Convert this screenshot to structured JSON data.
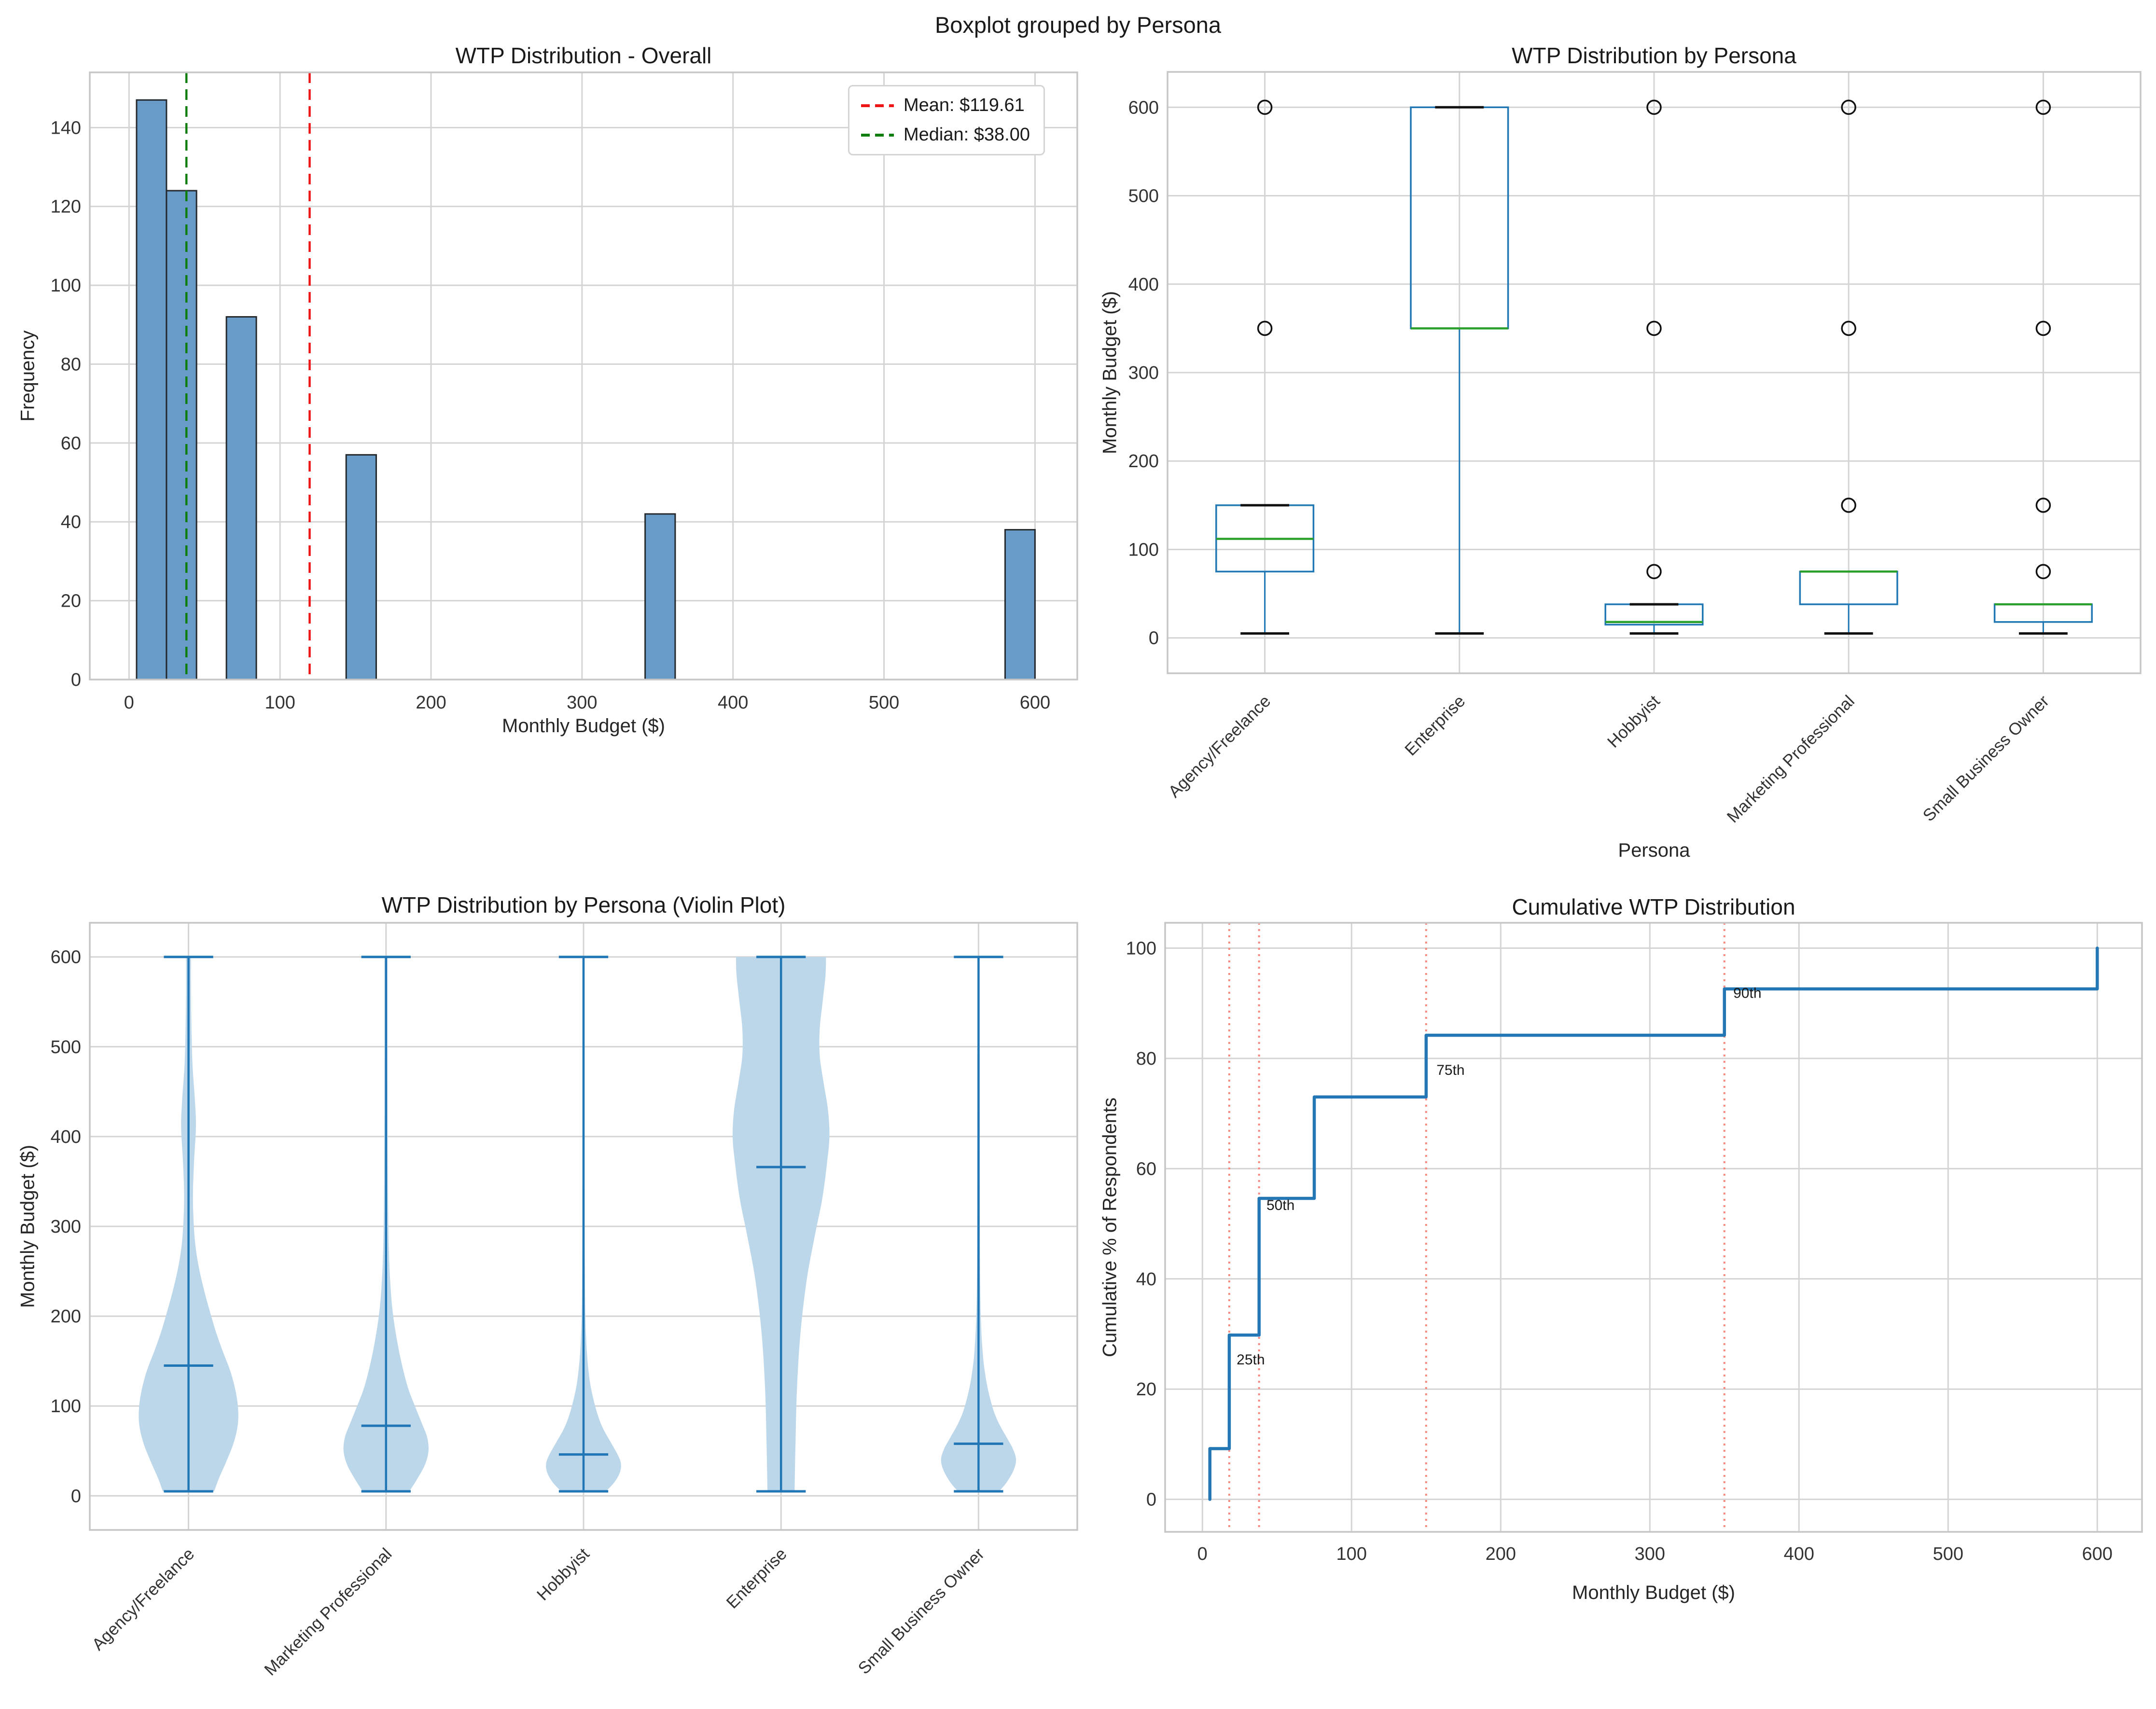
{
  "figure": {
    "suptitle": "Boxplot grouped by Persona"
  },
  "colors": {
    "hist_bar_fill": "#699bc8",
    "hist_bar_edge": "#24292e",
    "mean_red": "#ed1515",
    "median_green": "#0d7d0d",
    "box_blue": "#1f77b4",
    "box_median_green": "#2ca02c",
    "cap_black": "#111111",
    "violin_fill": "#bdd7ea",
    "violin_line": "#2176b5",
    "step_line": "#2277b4",
    "percentile_line": "#fa8a80",
    "grid": "#d4d4d4",
    "frame": "#c6c6c6",
    "tick_text": "#333333",
    "annotation_text": "#1a1a1a"
  },
  "chart_data": [
    {
      "id": "histogram",
      "type": "bar",
      "title": "WTP Distribution - Overall",
      "xlabel": "Monthly Budget ($)",
      "ylabel": "Frequency",
      "xlim": [
        -26,
        628
      ],
      "ylim": [
        0,
        154
      ],
      "xticks": [
        0,
        100,
        200,
        300,
        400,
        500,
        600
      ],
      "yticks": [
        0,
        20,
        40,
        60,
        80,
        100,
        120,
        140
      ],
      "bars": [
        {
          "x0": 5.0,
          "x1": 24.8,
          "height": 147
        },
        {
          "x0": 24.8,
          "x1": 44.7,
          "height": 124
        },
        {
          "x0": 64.5,
          "x1": 84.3,
          "height": 92
        },
        {
          "x0": 143.8,
          "x1": 163.7,
          "height": 57
        },
        {
          "x0": 341.8,
          "x1": 361.7,
          "height": 42
        },
        {
          "x0": 580.2,
          "x1": 600.0,
          "height": 38
        }
      ],
      "mean": 119.61,
      "median": 38.0,
      "legend": [
        {
          "label": "Mean: $119.61",
          "color": "#ed1515"
        },
        {
          "label": "Median: $38.00",
          "color": "#0d7d0d"
        }
      ]
    },
    {
      "id": "boxplot",
      "type": "boxplot",
      "title": "WTP Distribution by Persona",
      "xlabel": "Persona",
      "ylabel": "Monthly Budget ($)",
      "ylim": [
        -40,
        640
      ],
      "yticks": [
        0,
        100,
        200,
        300,
        400,
        500,
        600
      ],
      "categories": [
        "Agency/Freelance",
        "Enterprise",
        "Hobbyist",
        "Marketing Professional",
        "Small Business Owner"
      ],
      "boxes": [
        {
          "q1": 75,
          "median": 112,
          "q3": 150,
          "whislo": 5,
          "whishi": 150,
          "cap_hi": true,
          "outliers": [
            350,
            600
          ]
        },
        {
          "q1": 350,
          "median": 350,
          "q3": 600,
          "whislo": 5,
          "whishi": 600,
          "cap_hi": true,
          "outliers": []
        },
        {
          "q1": 15,
          "median": 18,
          "q3": 38,
          "whislo": 5,
          "whishi": 38,
          "cap_hi": true,
          "outliers": [
            75,
            350,
            600
          ]
        },
        {
          "q1": 38,
          "median": 75,
          "q3": 75,
          "whislo": 5,
          "whishi": 75,
          "cap_hi": false,
          "outliers": [
            150,
            350,
            600
          ]
        },
        {
          "q1": 18,
          "median": 38,
          "q3": 38,
          "whislo": 5,
          "whishi": 38,
          "cap_hi": false,
          "outliers": [
            75,
            150,
            350,
            600
          ]
        }
      ]
    },
    {
      "id": "violin",
      "type": "violin",
      "title": "WTP Distribution by Persona (Violin Plot)",
      "ylabel": "Monthly Budget ($)",
      "ylim": [
        -38,
        638
      ],
      "yticks": [
        0,
        100,
        200,
        300,
        400,
        500,
        600
      ],
      "categories": [
        "Agency/Freelance",
        "Marketing Professional",
        "Hobbyist",
        "Enterprise",
        "Small Business Owner"
      ],
      "violins": [
        {
          "min": 5,
          "max": 600,
          "mean": 145,
          "max_halfwidth": 0.25,
          "profile": [
            [
              5,
              0.52
            ],
            [
              20,
              0.62
            ],
            [
              40,
              0.78
            ],
            [
              60,
              0.92
            ],
            [
              80,
              1.0
            ],
            [
              100,
              1.0
            ],
            [
              120,
              0.94
            ],
            [
              140,
              0.84
            ],
            [
              160,
              0.7
            ],
            [
              180,
              0.57
            ],
            [
              200,
              0.46
            ],
            [
              230,
              0.31
            ],
            [
              260,
              0.19
            ],
            [
              290,
              0.12
            ],
            [
              330,
              0.09
            ],
            [
              370,
              0.11
            ],
            [
              410,
              0.15
            ],
            [
              440,
              0.13
            ],
            [
              480,
              0.08
            ],
            [
              520,
              0.06
            ],
            [
              560,
              0.05
            ],
            [
              600,
              0.05
            ]
          ]
        },
        {
          "min": 5,
          "max": 600,
          "mean": 78,
          "max_halfwidth": 0.215,
          "profile": [
            [
              5,
              0.55
            ],
            [
              20,
              0.75
            ],
            [
              35,
              0.92
            ],
            [
              50,
              1.0
            ],
            [
              65,
              0.97
            ],
            [
              80,
              0.85
            ],
            [
              100,
              0.68
            ],
            [
              120,
              0.52
            ],
            [
              145,
              0.38
            ],
            [
              170,
              0.27
            ],
            [
              200,
              0.17
            ],
            [
              230,
              0.11
            ],
            [
              270,
              0.07
            ],
            [
              320,
              0.05
            ],
            [
              400,
              0.04
            ],
            [
              500,
              0.035
            ],
            [
              600,
              0.035
            ]
          ]
        },
        {
          "min": 5,
          "max": 600,
          "mean": 46,
          "max_halfwidth": 0.19,
          "profile": [
            [
              5,
              0.6
            ],
            [
              15,
              0.82
            ],
            [
              25,
              0.96
            ],
            [
              35,
              1.0
            ],
            [
              45,
              0.92
            ],
            [
              60,
              0.72
            ],
            [
              75,
              0.52
            ],
            [
              90,
              0.38
            ],
            [
              110,
              0.25
            ],
            [
              130,
              0.16
            ],
            [
              160,
              0.09
            ],
            [
              200,
              0.05
            ],
            [
              260,
              0.035
            ],
            [
              350,
              0.03
            ],
            [
              500,
              0.03
            ],
            [
              600,
              0.03
            ]
          ]
        },
        {
          "min": 5,
          "max": 600,
          "mean": 366,
          "max_halfwidth": 0.245,
          "profile": [
            [
              5,
              0.28
            ],
            [
              60,
              0.3
            ],
            [
              120,
              0.33
            ],
            [
              180,
              0.4
            ],
            [
              240,
              0.53
            ],
            [
              290,
              0.7
            ],
            [
              330,
              0.85
            ],
            [
              370,
              0.95
            ],
            [
              400,
              1.0
            ],
            [
              430,
              0.97
            ],
            [
              460,
              0.88
            ],
            [
              490,
              0.8
            ],
            [
              520,
              0.8
            ],
            [
              550,
              0.86
            ],
            [
              580,
              0.92
            ],
            [
              600,
              0.93
            ]
          ]
        },
        {
          "min": 5,
          "max": 600,
          "mean": 58,
          "max_halfwidth": 0.19,
          "profile": [
            [
              5,
              0.55
            ],
            [
              15,
              0.75
            ],
            [
              28,
              0.93
            ],
            [
              40,
              1.0
            ],
            [
              52,
              0.92
            ],
            [
              65,
              0.75
            ],
            [
              80,
              0.55
            ],
            [
              95,
              0.4
            ],
            [
              115,
              0.27
            ],
            [
              135,
              0.18
            ],
            [
              160,
              0.11
            ],
            [
              200,
              0.06
            ],
            [
              260,
              0.04
            ],
            [
              350,
              0.035
            ],
            [
              500,
              0.03
            ],
            [
              600,
              0.03
            ]
          ]
        }
      ]
    },
    {
      "id": "cumulative",
      "type": "line",
      "title": "Cumulative WTP Distribution",
      "xlabel": "Monthly Budget ($)",
      "ylabel": "Cumulative % of Respondents",
      "xlim": [
        -25,
        630
      ],
      "ylim": [
        -5.9,
        104.6
      ],
      "xticks": [
        0,
        100,
        200,
        300,
        400,
        500,
        600
      ],
      "yticks": [
        0,
        20,
        40,
        60,
        80,
        100
      ],
      "steps": [
        [
          5,
          0
        ],
        [
          5,
          9.2
        ],
        [
          18,
          9.2
        ],
        [
          18,
          29.8
        ],
        [
          38,
          29.8
        ],
        [
          38,
          54.6
        ],
        [
          75,
          54.6
        ],
        [
          75,
          73.0
        ],
        [
          150,
          73.0
        ],
        [
          150,
          84.2
        ],
        [
          350,
          84.2
        ],
        [
          350,
          92.6
        ],
        [
          600,
          92.6
        ],
        [
          600,
          100
        ]
      ],
      "percentile_lines": [
        18,
        38,
        150,
        350
      ],
      "annotations": [
        {
          "label": "25th",
          "x": 21,
          "y": 24.5
        },
        {
          "label": "50th",
          "x": 41,
          "y": 52.5
        },
        {
          "label": "75th",
          "x": 155,
          "y": 77.0
        },
        {
          "label": "90th",
          "x": 354,
          "y": 91.0
        }
      ]
    }
  ]
}
